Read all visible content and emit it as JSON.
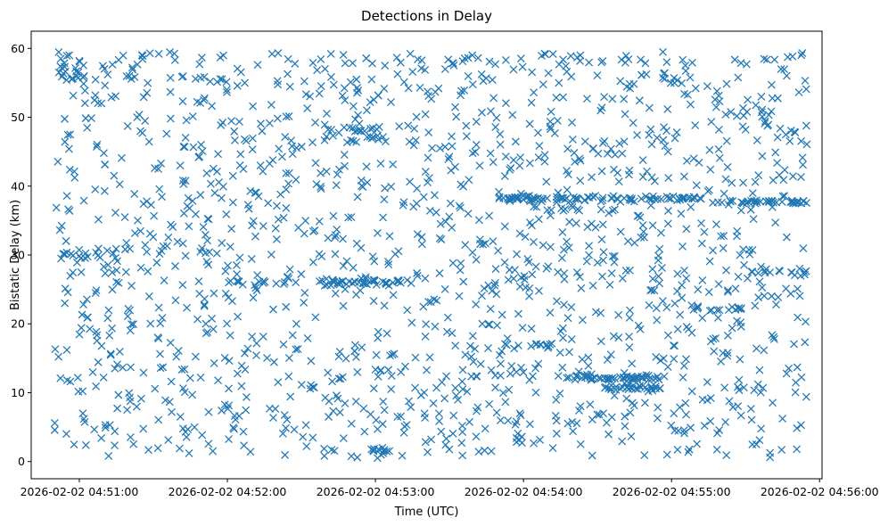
{
  "chart_data": {
    "type": "scatter",
    "title": "Detections in Delay",
    "xlabel": "Time (UTC)",
    "ylabel": "Bistatic Delay (km)",
    "marker": "x",
    "color": "#1f77b4",
    "x_unit": "seconds after 2026-02-02 04:50:00 UTC",
    "xlim": [
      40.5,
      361
    ],
    "ylim": [
      -2.5,
      62.5
    ],
    "x_ticks": [
      {
        "value": 60,
        "label": "2026-02-02 04:51:00"
      },
      {
        "value": 120,
        "label": "2026-02-02 04:52:00"
      },
      {
        "value": 180,
        "label": "2026-02-02 04:53:00"
      },
      {
        "value": 240,
        "label": "2026-02-02 04:54:00"
      },
      {
        "value": 300,
        "label": "2026-02-02 04:55:00"
      },
      {
        "value": 360,
        "label": "2026-02-02 04:56:00"
      }
    ],
    "y_ticks": [
      0,
      10,
      20,
      30,
      40,
      50,
      60
    ],
    "data_x_range": [
      50,
      355
    ],
    "data_y_range": [
      0.5,
      59.5
    ],
    "clusters": [
      {
        "x_start": 230,
        "x_end": 313,
        "y": 38.2,
        "count": 90,
        "spread": 0.35
      },
      {
        "x_start": 318,
        "x_end": 355,
        "y": 37.7,
        "count": 40,
        "spread": 0.35
      },
      {
        "x_start": 272,
        "x_end": 298,
        "y": 12.2,
        "count": 30,
        "spread": 0.3
      },
      {
        "x_start": 272,
        "x_end": 296,
        "y": 10.7,
        "count": 28,
        "spread": 0.3
      },
      {
        "x_start": 257,
        "x_end": 272,
        "y": 12.1,
        "count": 16,
        "spread": 0.4
      },
      {
        "x_start": 244,
        "x_end": 252,
        "y": 16.9,
        "count": 8,
        "spread": 0.3
      },
      {
        "x_start": 160,
        "x_end": 195,
        "y": 26.0,
        "count": 26,
        "spread": 0.5
      },
      {
        "x_start": 120,
        "x_end": 200,
        "y": 26.2,
        "count": 30,
        "spread": 0.8
      },
      {
        "x_start": 308,
        "x_end": 330,
        "y": 22.2,
        "count": 14,
        "spread": 0.4
      },
      {
        "x_start": 330,
        "x_end": 355,
        "y": 27.5,
        "count": 14,
        "spread": 0.5
      },
      {
        "x_start": 52,
        "x_end": 62,
        "y": 56.5,
        "count": 20,
        "spread": 2.0
      },
      {
        "x_start": 160,
        "x_end": 185,
        "y": 47.5,
        "count": 25,
        "spread": 1.5
      },
      {
        "x_start": 52,
        "x_end": 75,
        "y": 30.0,
        "count": 18,
        "spread": 0.8
      },
      {
        "x_start": 177,
        "x_end": 185,
        "y": 1.5,
        "count": 10,
        "spread": 0.6
      }
    ],
    "background_points": 1550,
    "seed": 20260202
  }
}
